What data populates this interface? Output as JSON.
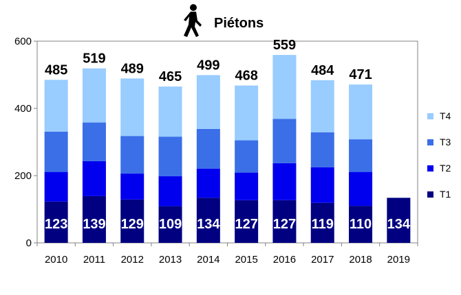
{
  "chart_data": {
    "type": "bar",
    "stacked": true,
    "title": "Piétons",
    "icon": "pedestrian-icon",
    "categories": [
      "2010",
      "2011",
      "2012",
      "2013",
      "2014",
      "2015",
      "2016",
      "2017",
      "2018",
      "2019"
    ],
    "series": [
      {
        "name": "T1",
        "color": "#000080",
        "values": [
          123,
          139,
          129,
          109,
          134,
          127,
          127,
          119,
          110,
          134
        ]
      },
      {
        "name": "T2",
        "color": "#0000ee",
        "values": [
          88,
          104,
          77,
          89,
          87,
          82,
          110,
          106,
          101,
          null
        ]
      },
      {
        "name": "T3",
        "color": "#3a6fe8",
        "values": [
          120,
          115,
          112,
          118,
          118,
          96,
          132,
          104,
          97,
          null
        ]
      },
      {
        "name": "T4",
        "color": "#99ccff",
        "values": [
          154,
          161,
          171,
          149,
          160,
          163,
          190,
          155,
          163,
          null
        ]
      }
    ],
    "totals": [
      485,
      519,
      489,
      465,
      499,
      468,
      559,
      484,
      471,
      null
    ],
    "ylim": [
      0,
      600
    ],
    "yticks": [
      0,
      200,
      400,
      600
    ],
    "grid": false,
    "legend_position": "right"
  }
}
